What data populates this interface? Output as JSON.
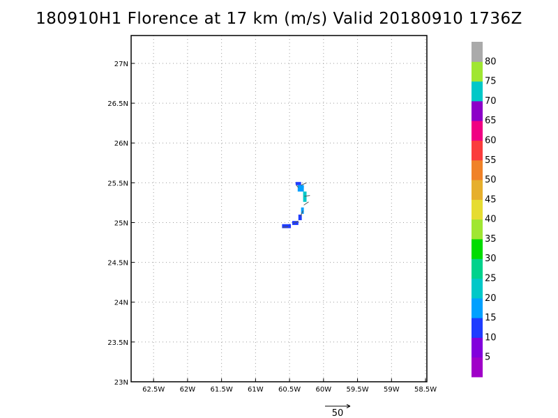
{
  "chart_data": {
    "type": "heatmap",
    "title": "180910H1 Florence at 17 km (m/s) Valid 20180910 1736Z",
    "x_ticks": [
      {
        "value": -62.5,
        "label": "62.5W"
      },
      {
        "value": -62.0,
        "label": "62W"
      },
      {
        "value": -61.5,
        "label": "61.5W"
      },
      {
        "value": -61.0,
        "label": "61W"
      },
      {
        "value": -60.5,
        "label": "60.5W"
      },
      {
        "value": -60.0,
        "label": "60W"
      },
      {
        "value": -59.5,
        "label": "59.5W"
      },
      {
        "value": -59.0,
        "label": "59W"
      },
      {
        "value": -58.5,
        "label": "58.5W"
      }
    ],
    "y_ticks": [
      {
        "value": 23.0,
        "label": "23N"
      },
      {
        "value": 23.5,
        "label": "23.5N"
      },
      {
        "value": 24.0,
        "label": "24N"
      },
      {
        "value": 24.5,
        "label": "24.5N"
      },
      {
        "value": 25.0,
        "label": "25N"
      },
      {
        "value": 25.5,
        "label": "25.5N"
      },
      {
        "value": 26.0,
        "label": "26N"
      },
      {
        "value": 26.5,
        "label": "26.5N"
      },
      {
        "value": 27.0,
        "label": "27N"
      }
    ],
    "xlim": [
      -62.83,
      -58.48
    ],
    "ylim": [
      23.0,
      27.35
    ],
    "grid": true,
    "colorbar": {
      "labels": [
        "5",
        "10",
        "15",
        "20",
        "25",
        "30",
        "35",
        "40",
        "45",
        "50",
        "55",
        "60",
        "65",
        "70",
        "75",
        "80"
      ],
      "colors": [
        "#a000c8",
        "#8200dc",
        "#1e3cff",
        "#00a0ff",
        "#00c8c8",
        "#00d28c",
        "#00dc00",
        "#a0e632",
        "#e6dc32",
        "#e6af2d",
        "#f08228",
        "#fa3c3c",
        "#f00082",
        "#8c00c8",
        "#00c8c8",
        "#a0e632",
        "#aaaaaa"
      ]
    },
    "cells": [
      {
        "lon": -60.41,
        "lat": 25.47,
        "w": 0.08,
        "h": 0.04,
        "color": "#1e3cff"
      },
      {
        "lon": -60.33,
        "lat": 25.43,
        "w": 0.04,
        "h": 0.04,
        "color": "#00a0ff"
      },
      {
        "lon": -60.38,
        "lat": 25.39,
        "w": 0.09,
        "h": 0.08,
        "color": "#00a0ff"
      },
      {
        "lon": -60.3,
        "lat": 25.26,
        "w": 0.05,
        "h": 0.13,
        "color": "#00c8c8"
      },
      {
        "lon": -60.33,
        "lat": 25.11,
        "w": 0.04,
        "h": 0.08,
        "color": "#00a0ff"
      },
      {
        "lon": -60.37,
        "lat": 25.03,
        "w": 0.05,
        "h": 0.07,
        "color": "#1e3cff"
      },
      {
        "lon": -60.46,
        "lat": 24.97,
        "w": 0.09,
        "h": 0.05,
        "color": "#1e3cff"
      },
      {
        "lon": -60.61,
        "lat": 24.93,
        "w": 0.13,
        "h": 0.05,
        "color": "#1e3cff"
      }
    ],
    "wind_vector_reference": {
      "label": "50"
    }
  }
}
